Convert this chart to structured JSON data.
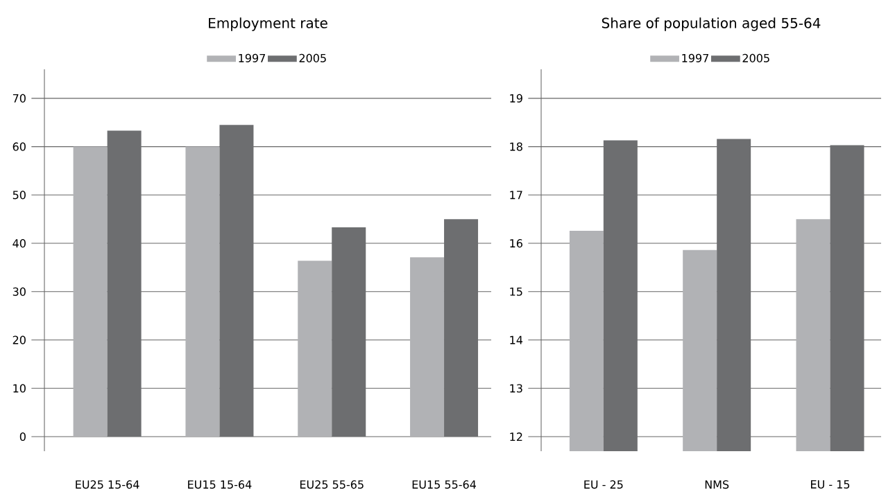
{
  "chart_data": [
    {
      "type": "bar",
      "title": "Employment rate",
      "categories": [
        "EU25  15-64",
        "EU15  15-64",
        "EU25  55-65",
        "EU15  55-64"
      ],
      "series": [
        {
          "name": "1997",
          "color": "#b1b2b5",
          "values": [
            60.0,
            60.0,
            36.4,
            37.1
          ]
        },
        {
          "name": "2005",
          "color": "#6d6e70",
          "values": [
            63.3,
            64.5,
            43.3,
            45.0
          ]
        }
      ],
      "ylim": [
        -3,
        76
      ],
      "yticks": [
        0,
        10,
        20,
        30,
        40,
        50,
        60,
        70
      ],
      "grid": "y",
      "legend": "top"
    },
    {
      "type": "bar",
      "title": "Share of population aged 55-64",
      "categories": [
        "EU - 25",
        "NMS",
        "EU - 15"
      ],
      "series": [
        {
          "name": "1997",
          "color": "#b1b2b5",
          "values": [
            16.26,
            15.86,
            16.5
          ]
        },
        {
          "name": "2005",
          "color": "#6d6e70",
          "values": [
            18.13,
            18.16,
            18.03
          ]
        }
      ],
      "ylim": [
        11.7,
        19.6
      ],
      "yticks": [
        12,
        13,
        14,
        15,
        16,
        17,
        18,
        19
      ],
      "grid": "y",
      "legend": "top"
    }
  ]
}
